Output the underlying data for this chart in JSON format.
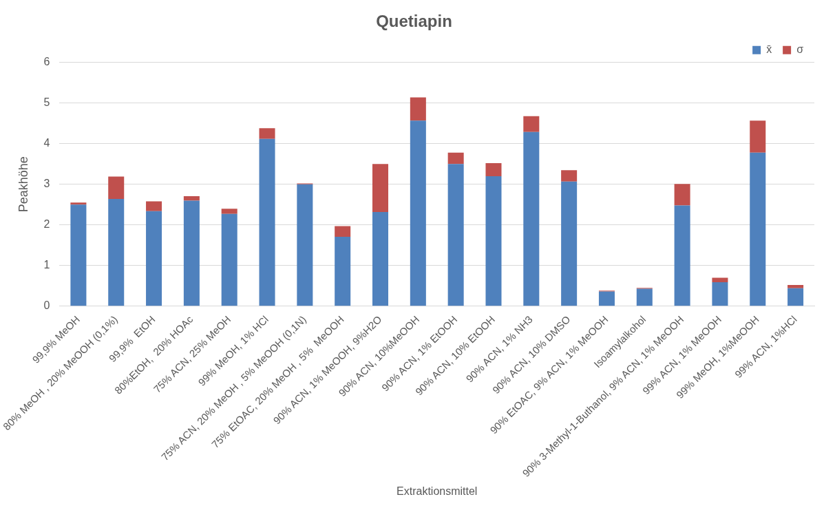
{
  "chart_data": {
    "type": "bar",
    "title": "Quetiapin",
    "xlabel": "Extraktionsmittel",
    "ylabel": "Peakhöhe",
    "stacked": true,
    "grid": "y",
    "legend": "top right",
    "categories": [
      "99,9% MeOH",
      "80% MeOH , 20% MeOOH (0,1%)",
      "99,9%  EtOH",
      "80%EtOH,  20% HOAc",
      "75% ACN, 25% MeOH",
      "99% MeOH, 1% HCl",
      "75% ACN, 20% MeOH , 5% MeOOH (0,1N)",
      "75% EtOAC, 20% MeOH , 5%  MeOOH",
      "90% ACN, 1% MeOOH, 9%H2O",
      "90% ACN, 10%MeOOH",
      "90% ACN, 1% EtOOH",
      "90% ACN, 10% EtOOH",
      "90% ACN, 1% NH3",
      "90% ACN, 10% DMSO",
      "90% EtOAC, 9% ACN, 1% MeOOH",
      "Isoamylalkohol",
      "90% 3-Methyl-1-Buthanol, 9% ACN, 1% MeOOH",
      "99% ACN, 1% MeOOH",
      "99% MeOH, 1%MeOOH",
      "99% ACN, 1%HCl"
    ],
    "series": [
      {
        "name": "x̄",
        "color": "#4f81bd",
        "values": [
          2.5,
          2.64,
          2.34,
          2.6,
          2.27,
          4.12,
          3.0,
          1.71,
          2.32,
          4.57,
          3.5,
          3.2,
          4.29,
          3.07,
          0.36,
          0.43,
          2.48,
          0.59,
          3.78,
          0.44
        ]
      },
      {
        "name": "σ",
        "color": "#c0504d",
        "values": [
          0.05,
          0.55,
          0.24,
          0.11,
          0.13,
          0.26,
          0.02,
          0.26,
          1.18,
          0.57,
          0.28,
          0.32,
          0.39,
          0.28,
          0.02,
          0.02,
          0.53,
          0.11,
          0.79,
          0.08
        ]
      }
    ],
    "ylim": [
      0,
      6
    ],
    "yticks": [
      0,
      1,
      2,
      3,
      4,
      5,
      6
    ]
  }
}
